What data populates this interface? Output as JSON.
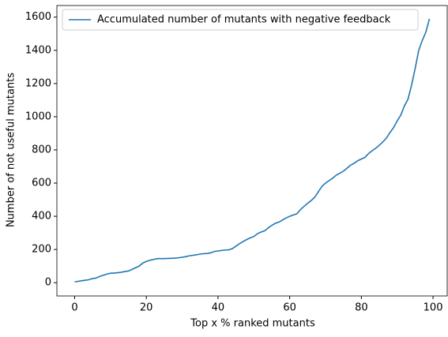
{
  "chart_data": {
    "type": "line",
    "x_label": "Top x % ranked mutants",
    "y_label": "Number of not useful mutants",
    "x": [
      0,
      1,
      2,
      3,
      4,
      5,
      6,
      7,
      8,
      9,
      10,
      11,
      12,
      13,
      14,
      15,
      16,
      17,
      18,
      19,
      20,
      21,
      22,
      23,
      24,
      25,
      26,
      27,
      28,
      29,
      30,
      31,
      32,
      33,
      34,
      35,
      36,
      37,
      38,
      39,
      40,
      41,
      42,
      43,
      44,
      45,
      46,
      47,
      48,
      49,
      50,
      51,
      52,
      53,
      54,
      55,
      56,
      57,
      58,
      59,
      60,
      61,
      62,
      63,
      64,
      65,
      66,
      67,
      68,
      69,
      70,
      71,
      72,
      73,
      74,
      75,
      76,
      77,
      78,
      79,
      80,
      81,
      82,
      83,
      84,
      85,
      86,
      87,
      88,
      89,
      90,
      91,
      92,
      93,
      94,
      95,
      96,
      97,
      98,
      99
    ],
    "series": [
      {
        "name": "Accumulated number of mutants with negative feedback",
        "color": "#1f77b4",
        "values": [
          5,
          8,
          12,
          15,
          18,
          25,
          28,
          38,
          45,
          52,
          57,
          58,
          60,
          63,
          67,
          70,
          80,
          90,
          100,
          118,
          128,
          135,
          140,
          145,
          145,
          145,
          146,
          147,
          148,
          150,
          153,
          157,
          162,
          165,
          168,
          172,
          175,
          176,
          180,
          188,
          191,
          194,
          197,
          198,
          205,
          220,
          235,
          248,
          260,
          270,
          278,
          295,
          305,
          312,
          330,
          345,
          358,
          365,
          378,
          390,
          400,
          408,
          415,
          440,
          460,
          478,
          495,
          515,
          548,
          580,
          600,
          615,
          630,
          648,
          660,
          672,
          690,
          708,
          720,
          735,
          745,
          755,
          778,
          795,
          810,
          828,
          848,
          872,
          905,
          935,
          975,
          1010,
          1065,
          1105,
          1190,
          1290,
          1400,
          1460,
          1510,
          1590
        ]
      }
    ],
    "xlim": [
      -4.95,
      103.95
    ],
    "xticks": [
      0,
      20,
      40,
      60,
      80,
      100
    ],
    "ylim": [
      -80,
      1670
    ],
    "yticks": [
      0,
      200,
      400,
      600,
      800,
      1000,
      1200,
      1400,
      1600
    ],
    "legend": "upper left"
  }
}
